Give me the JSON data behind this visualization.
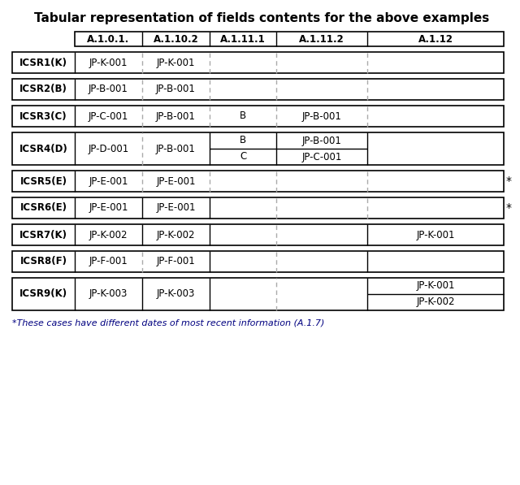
{
  "title": "Tabular representation of fields contents for the above examples",
  "title_fontsize": 11,
  "footnote": "*These cases have different dates of most recent information (A.1.7)",
  "col_headers": [
    "A.1.0.1.",
    "A.1.10.2",
    "A.1.11.1",
    "A.1.11.2",
    "A.1.12"
  ],
  "rows": [
    {
      "label": "ICSR1(K)",
      "cells": [
        "JP-K-001",
        "JP-K-001",
        "",
        "",
        ""
      ],
      "div1_dashed": true,
      "div2_dashed": true,
      "div3_dashed": true,
      "div4_dashed": true,
      "multirow": false,
      "asterisk": false
    },
    {
      "label": "ICSR2(B)",
      "cells": [
        "JP-B-001",
        "JP-B-001",
        "",
        "",
        ""
      ],
      "div1_dashed": true,
      "div2_dashed": true,
      "div3_dashed": true,
      "div4_dashed": true,
      "multirow": false,
      "asterisk": false
    },
    {
      "label": "ICSR3(C)",
      "cells": [
        "JP-C-001",
        "JP-B-001",
        "B",
        "JP-B-001",
        ""
      ],
      "div1_dashed": true,
      "div2_dashed": true,
      "div3_dashed": true,
      "div4_dashed": true,
      "multirow": false,
      "asterisk": false
    },
    {
      "label": "ICSR4(D)",
      "cells": [
        "JP-D-001",
        "JP-B-001",
        "B\nC",
        "JP-B-001\nJP-C-001",
        ""
      ],
      "div1_dashed": true,
      "div2_dashed": false,
      "div3_dashed": false,
      "div4_dashed": false,
      "multirow": true,
      "asterisk": false
    },
    {
      "label": "ICSR5(E)",
      "cells": [
        "JP-E-001",
        "JP-E-001",
        "",
        "",
        ""
      ],
      "div1_dashed": true,
      "div2_dashed": true,
      "div3_dashed": true,
      "div4_dashed": true,
      "multirow": false,
      "asterisk": true
    },
    {
      "label": "ICSR6(E)",
      "cells": [
        "JP-E-001",
        "JP-E-001",
        "",
        "",
        ""
      ],
      "div1_dashed": false,
      "div2_dashed": false,
      "div3_dashed": true,
      "div4_dashed": true,
      "multirow": false,
      "asterisk": true
    },
    {
      "label": "ICSR7(K)",
      "cells": [
        "JP-K-002",
        "JP-K-002",
        "",
        "",
        "JP-K-001"
      ],
      "div1_dashed": false,
      "div2_dashed": false,
      "div3_dashed": true,
      "div4_dashed": false,
      "multirow": false,
      "asterisk": false
    },
    {
      "label": "ICSR8(F)",
      "cells": [
        "JP-F-001",
        "JP-F-001",
        "",
        "",
        ""
      ],
      "div1_dashed": true,
      "div2_dashed": false,
      "div3_dashed": true,
      "div4_dashed": false,
      "multirow": false,
      "asterisk": false
    },
    {
      "label": "ICSR9(K)",
      "cells": [
        "JP-K-003",
        "JP-K-003",
        "",
        "",
        "JP-K-001\nJP-K-002"
      ],
      "div1_dashed": false,
      "div2_dashed": false,
      "div3_dashed": true,
      "div4_dashed": false,
      "multirow": true,
      "asterisk": false
    }
  ],
  "bg_color": "#ffffff",
  "text_color": "#000000",
  "dashed_color": "#aaaaaa"
}
